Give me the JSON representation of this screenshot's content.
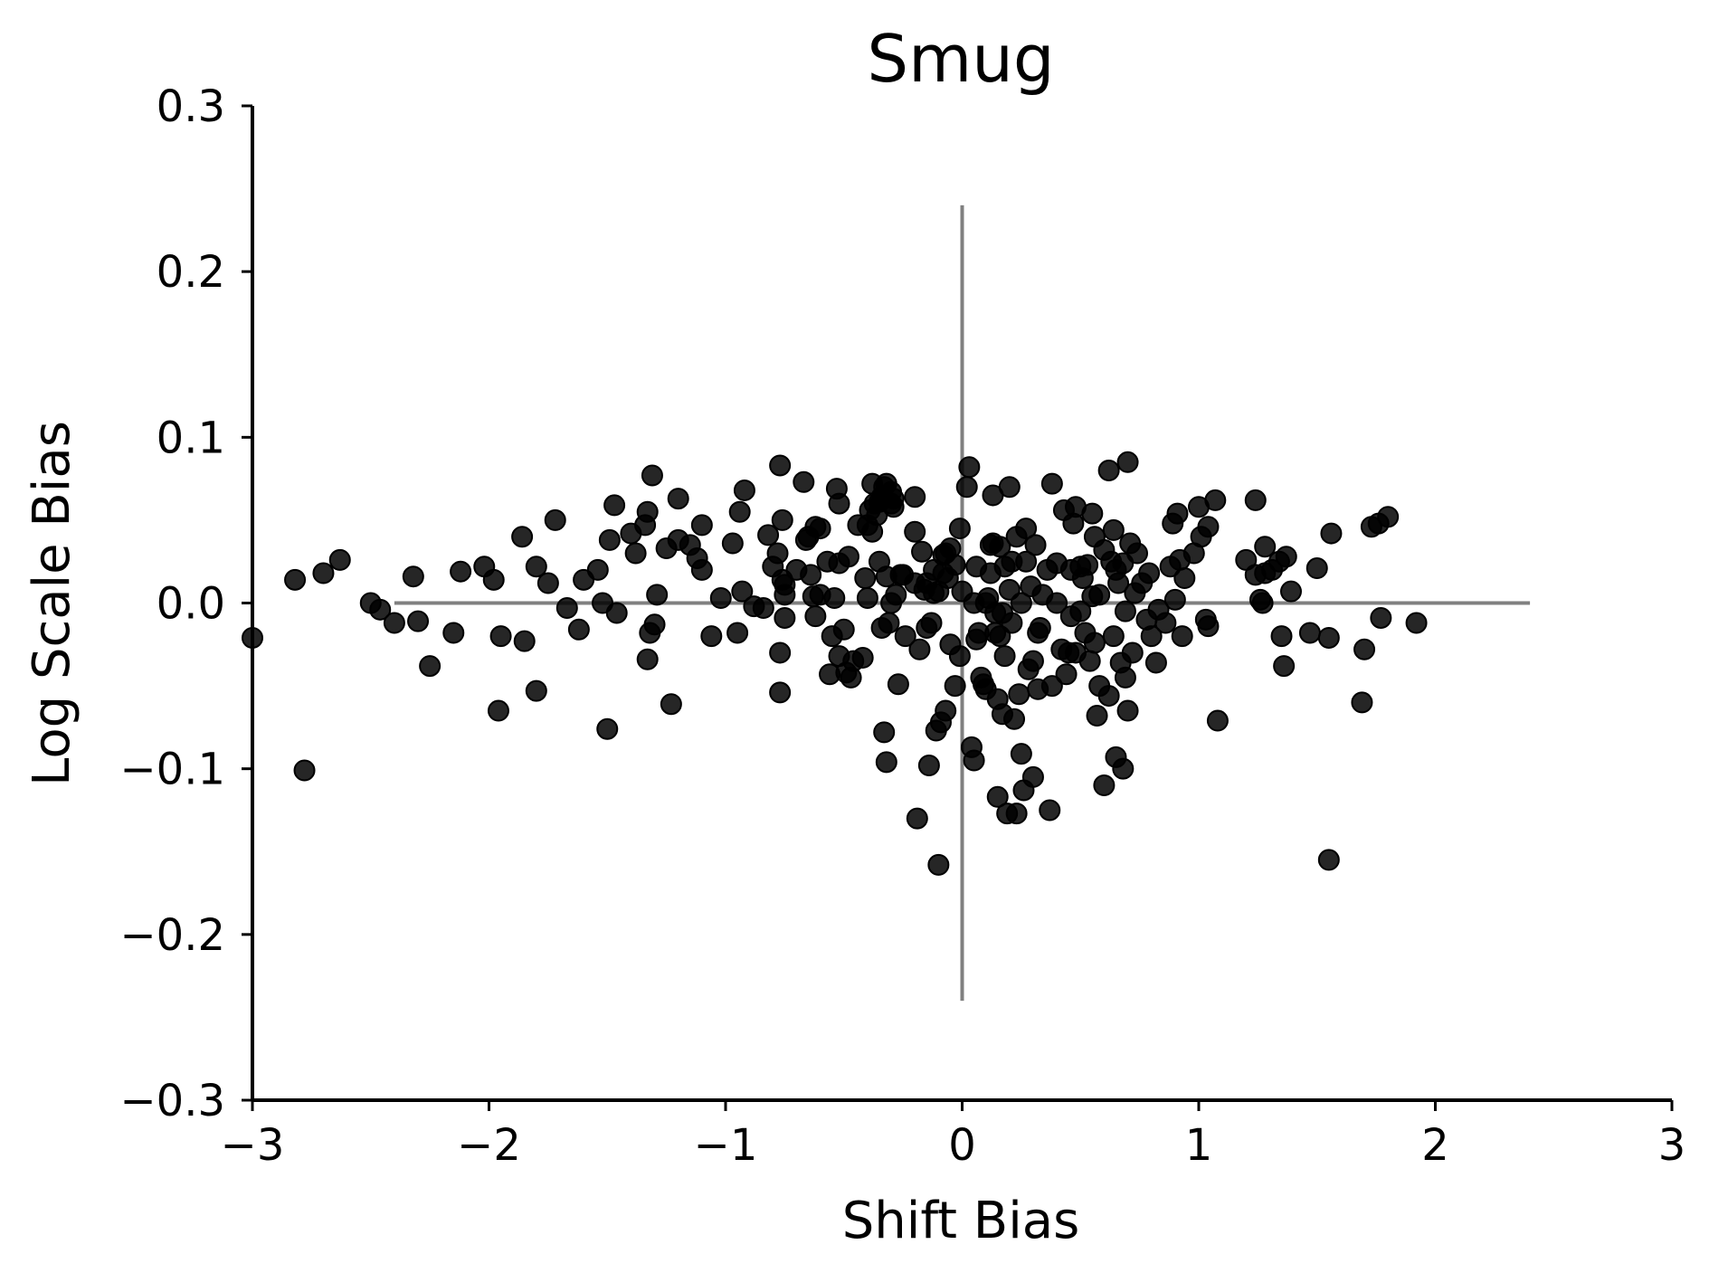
{
  "chart_data": {
    "type": "scatter",
    "title": "Smug",
    "xlabel": "Shift Bias",
    "ylabel": "Log Scale Bias",
    "xlim": [
      -3,
      3
    ],
    "ylim": [
      -0.3,
      0.3
    ],
    "xticks": [
      -3,
      -2,
      -1,
      0,
      1,
      2,
      3
    ],
    "xtick_labels": [
      "−3",
      "−2",
      "−1",
      "0",
      "1",
      "2",
      "3"
    ],
    "yticks": [
      -0.3,
      -0.2,
      -0.1,
      0.0,
      0.1,
      0.2,
      0.3
    ],
    "ytick_labels": [
      "−0.3",
      "−0.2",
      "−0.1",
      "0.0",
      "0.1",
      "0.2",
      "0.3"
    ],
    "grid": false,
    "legend": "none",
    "reference_lines": {
      "horizontal": {
        "y": 0,
        "x_range": [
          -2.4,
          2.4
        ],
        "color": "#808080"
      },
      "vertical": {
        "x": 0,
        "y_range": [
          -0.24,
          0.24
        ],
        "color": "#808080"
      }
    },
    "marker_color": "#000000",
    "points": [
      [
        -3.0,
        -0.021
      ],
      [
        -2.82,
        0.014
      ],
      [
        -2.7,
        0.018
      ],
      [
        -2.63,
        0.026
      ],
      [
        -2.78,
        -0.101
      ],
      [
        -2.5,
        0.0
      ],
      [
        -2.46,
        -0.004
      ],
      [
        -2.4,
        -0.012
      ],
      [
        -2.32,
        0.016
      ],
      [
        -2.3,
        -0.011
      ],
      [
        -2.25,
        -0.038
      ],
      [
        -2.15,
        -0.018
      ],
      [
        -2.12,
        0.019
      ],
      [
        -2.02,
        0.022
      ],
      [
        -1.98,
        0.014
      ],
      [
        -1.96,
        -0.065
      ],
      [
        -1.95,
        -0.02
      ],
      [
        -1.86,
        0.04
      ],
      [
        -1.85,
        -0.023
      ],
      [
        -1.8,
        0.022
      ],
      [
        -1.8,
        -0.053
      ],
      [
        -1.75,
        0.012
      ],
      [
        -1.72,
        0.05
      ],
      [
        -1.67,
        -0.003
      ],
      [
        -1.62,
        -0.016
      ],
      [
        -1.6,
        0.014
      ],
      [
        -1.54,
        0.02
      ],
      [
        -1.52,
        0.0
      ],
      [
        -1.5,
        -0.076
      ],
      [
        -1.49,
        0.038
      ],
      [
        -1.47,
        0.059
      ],
      [
        -1.46,
        -0.006
      ],
      [
        -1.4,
        0.042
      ],
      [
        -1.38,
        0.03
      ],
      [
        -1.34,
        0.047
      ],
      [
        -1.33,
        0.055
      ],
      [
        -1.33,
        -0.034
      ],
      [
        -1.32,
        -0.018
      ],
      [
        -1.31,
        0.077
      ],
      [
        -1.3,
        -0.013
      ],
      [
        -1.29,
        0.005
      ],
      [
        -1.25,
        0.033
      ],
      [
        -1.23,
        -0.061
      ],
      [
        -1.2,
        0.038
      ],
      [
        -1.2,
        0.063
      ],
      [
        -1.15,
        0.035
      ],
      [
        -1.12,
        0.027
      ],
      [
        -1.1,
        0.047
      ],
      [
        -1.1,
        0.02
      ],
      [
        -1.06,
        -0.02
      ],
      [
        -1.02,
        0.003
      ],
      [
        -0.97,
        0.036
      ],
      [
        -0.95,
        -0.018
      ],
      [
        -0.94,
        0.055
      ],
      [
        -0.93,
        0.007
      ],
      [
        -0.92,
        0.068
      ],
      [
        -0.88,
        -0.002
      ],
      [
        -0.84,
        -0.003
      ],
      [
        -0.82,
        0.041
      ],
      [
        -0.8,
        0.022
      ],
      [
        -0.78,
        0.03
      ],
      [
        -0.77,
        0.083
      ],
      [
        -0.77,
        -0.054
      ],
      [
        -0.77,
        -0.03
      ],
      [
        -0.76,
        0.05
      ],
      [
        -0.76,
        0.014
      ],
      [
        -0.75,
        0.011
      ],
      [
        -0.75,
        0.005
      ],
      [
        -0.75,
        -0.009
      ],
      [
        -0.7,
        0.02
      ],
      [
        -0.67,
        0.073
      ],
      [
        -0.66,
        0.038
      ],
      [
        -0.65,
        0.04
      ],
      [
        -0.64,
        0.017
      ],
      [
        -0.63,
        0.004
      ],
      [
        -0.62,
        0.046
      ],
      [
        -0.62,
        -0.008
      ],
      [
        -0.6,
        0.045
      ],
      [
        -0.6,
        0.005
      ],
      [
        -0.57,
        0.025
      ],
      [
        -0.56,
        -0.043
      ],
      [
        -0.55,
        -0.02
      ],
      [
        -0.54,
        0.003
      ],
      [
        -0.53,
        0.069
      ],
      [
        -0.52,
        0.06
      ],
      [
        -0.52,
        0.024
      ],
      [
        -0.52,
        -0.032
      ],
      [
        -0.5,
        -0.016
      ],
      [
        -0.49,
        -0.042
      ],
      [
        -0.48,
        0.028
      ],
      [
        -0.47,
        -0.045
      ],
      [
        -0.46,
        -0.035
      ],
      [
        -0.44,
        0.047
      ],
      [
        -0.42,
        -0.033
      ],
      [
        -0.41,
        0.015
      ],
      [
        -0.4,
        0.003
      ],
      [
        -0.4,
        0.047
      ],
      [
        -0.39,
        0.056
      ],
      [
        -0.38,
        0.043
      ],
      [
        -0.38,
        0.072
      ],
      [
        -0.37,
        0.06
      ],
      [
        -0.36,
        0.053
      ],
      [
        -0.35,
        0.025
      ],
      [
        -0.35,
        0.061
      ],
      [
        -0.34,
        0.064
      ],
      [
        -0.33,
        0.07
      ],
      [
        -0.32,
        0.072
      ],
      [
        -0.34,
        -0.015
      ],
      [
        -0.33,
        -0.078
      ],
      [
        -0.32,
        -0.096
      ],
      [
        -0.32,
        0.016
      ],
      [
        -0.31,
        -0.012
      ],
      [
        -0.3,
        0.0
      ],
      [
        -0.3,
        0.067
      ],
      [
        -0.3,
        0.06
      ],
      [
        -0.29,
        0.058
      ],
      [
        -0.29,
        0.063
      ],
      [
        -0.28,
        0.005
      ],
      [
        -0.27,
        -0.049
      ],
      [
        -0.26,
        0.017
      ],
      [
        -0.25,
        0.017
      ],
      [
        -0.24,
        -0.02
      ],
      [
        -0.2,
        0.064
      ],
      [
        -0.2,
        0.012
      ],
      [
        -0.2,
        0.043
      ],
      [
        -0.19,
        -0.13
      ],
      [
        -0.18,
        -0.028
      ],
      [
        -0.17,
        0.031
      ],
      [
        -0.16,
        0.008
      ],
      [
        -0.15,
        -0.015
      ],
      [
        -0.15,
        0.012
      ],
      [
        -0.14,
        -0.098
      ],
      [
        -0.13,
        -0.012
      ],
      [
        -0.12,
        0.006
      ],
      [
        -0.12,
        0.02
      ],
      [
        -0.11,
        -0.077
      ],
      [
        -0.1,
        -0.158
      ],
      [
        -0.1,
        0.007
      ],
      [
        -0.09,
        -0.072
      ],
      [
        -0.08,
        0.029
      ],
      [
        -0.08,
        0.018
      ],
      [
        -0.07,
        0.03
      ],
      [
        -0.07,
        -0.065
      ],
      [
        -0.06,
        0.015
      ],
      [
        -0.05,
        0.033
      ],
      [
        -0.05,
        -0.025
      ],
      [
        -0.03,
        0.023
      ],
      [
        -0.03,
        -0.05
      ],
      [
        -0.01,
        0.045
      ],
      [
        -0.01,
        -0.032
      ],
      [
        0.0,
        0.007
      ],
      [
        0.02,
        0.07
      ],
      [
        0.03,
        0.082
      ],
      [
        0.04,
        -0.087
      ],
      [
        0.05,
        -0.095
      ],
      [
        0.05,
        0.0
      ],
      [
        0.06,
        0.022
      ],
      [
        0.06,
        -0.022
      ],
      [
        0.07,
        -0.018
      ],
      [
        0.08,
        -0.045
      ],
      [
        0.09,
        -0.049
      ],
      [
        0.1,
        0.0
      ],
      [
        0.1,
        -0.052
      ],
      [
        0.11,
        0.003
      ],
      [
        0.12,
        0.018
      ],
      [
        0.12,
        0.035
      ],
      [
        0.13,
        0.036
      ],
      [
        0.13,
        0.065
      ],
      [
        0.14,
        -0.006
      ],
      [
        0.14,
        -0.018
      ],
      [
        0.15,
        -0.058
      ],
      [
        0.15,
        -0.117
      ],
      [
        0.16,
        -0.02
      ],
      [
        0.16,
        0.034
      ],
      [
        0.17,
        -0.067
      ],
      [
        0.17,
        -0.006
      ],
      [
        0.18,
        0.022
      ],
      [
        0.18,
        -0.032
      ],
      [
        0.19,
        -0.127
      ],
      [
        0.2,
        0.07
      ],
      [
        0.2,
        0.008
      ],
      [
        0.21,
        0.025
      ],
      [
        0.21,
        -0.012
      ],
      [
        0.22,
        -0.07
      ],
      [
        0.23,
        0.04
      ],
      [
        0.23,
        -0.127
      ],
      [
        0.24,
        -0.055
      ],
      [
        0.25,
        -0.091
      ],
      [
        0.25,
        0.0
      ],
      [
        0.26,
        -0.113
      ],
      [
        0.27,
        0.045
      ],
      [
        0.27,
        0.025
      ],
      [
        0.28,
        -0.04
      ],
      [
        0.29,
        0.01
      ],
      [
        0.3,
        -0.105
      ],
      [
        0.3,
        -0.035
      ],
      [
        0.31,
        0.035
      ],
      [
        0.32,
        -0.018
      ],
      [
        0.32,
        -0.052
      ],
      [
        0.33,
        -0.015
      ],
      [
        0.34,
        0.005
      ],
      [
        0.36,
        0.02
      ],
      [
        0.37,
        -0.125
      ],
      [
        0.38,
        0.072
      ],
      [
        0.38,
        -0.05
      ],
      [
        0.4,
        0.0
      ],
      [
        0.4,
        0.024
      ],
      [
        0.42,
        -0.028
      ],
      [
        0.43,
        0.056
      ],
      [
        0.44,
        -0.043
      ],
      [
        0.45,
        -0.03
      ],
      [
        0.46,
        -0.008
      ],
      [
        0.46,
        0.02
      ],
      [
        0.47,
        0.048
      ],
      [
        0.48,
        0.058
      ],
      [
        0.48,
        -0.03
      ],
      [
        0.5,
        0.022
      ],
      [
        0.5,
        -0.005
      ],
      [
        0.51,
        0.015
      ],
      [
        0.52,
        -0.018
      ],
      [
        0.53,
        0.023
      ],
      [
        0.54,
        -0.035
      ],
      [
        0.55,
        0.054
      ],
      [
        0.55,
        0.004
      ],
      [
        0.56,
        -0.024
      ],
      [
        0.56,
        0.04
      ],
      [
        0.57,
        -0.068
      ],
      [
        0.58,
        0.005
      ],
      [
        0.58,
        -0.05
      ],
      [
        0.6,
        0.032
      ],
      [
        0.6,
        -0.11
      ],
      [
        0.62,
        0.08
      ],
      [
        0.62,
        -0.056
      ],
      [
        0.63,
        0.025
      ],
      [
        0.64,
        0.044
      ],
      [
        0.64,
        -0.02
      ],
      [
        0.65,
        0.02
      ],
      [
        0.65,
        -0.093
      ],
      [
        0.66,
        0.012
      ],
      [
        0.67,
        -0.036
      ],
      [
        0.68,
        -0.1
      ],
      [
        0.68,
        0.024
      ],
      [
        0.69,
        -0.005
      ],
      [
        0.69,
        -0.045
      ],
      [
        0.7,
        -0.065
      ],
      [
        0.7,
        0.085
      ],
      [
        0.71,
        0.036
      ],
      [
        0.72,
        -0.03
      ],
      [
        0.73,
        0.006
      ],
      [
        0.74,
        0.03
      ],
      [
        0.76,
        0.012
      ],
      [
        0.78,
        -0.01
      ],
      [
        0.79,
        0.018
      ],
      [
        0.8,
        -0.02
      ],
      [
        0.82,
        -0.036
      ],
      [
        0.83,
        -0.004
      ],
      [
        0.86,
        -0.012
      ],
      [
        0.88,
        0.022
      ],
      [
        0.89,
        0.048
      ],
      [
        0.9,
        0.002
      ],
      [
        0.91,
        0.054
      ],
      [
        0.92,
        0.026
      ],
      [
        0.93,
        -0.02
      ],
      [
        0.94,
        0.015
      ],
      [
        0.98,
        0.03
      ],
      [
        1.0,
        0.058
      ],
      [
        1.01,
        0.04
      ],
      [
        1.03,
        -0.01
      ],
      [
        1.04,
        -0.014
      ],
      [
        1.04,
        0.046
      ],
      [
        1.07,
        0.062
      ],
      [
        1.08,
        -0.071
      ],
      [
        1.2,
        0.026
      ],
      [
        1.24,
        0.062
      ],
      [
        1.24,
        0.017
      ],
      [
        1.26,
        0.002
      ],
      [
        1.27,
        0.0
      ],
      [
        1.28,
        0.034
      ],
      [
        1.28,
        0.018
      ],
      [
        1.31,
        0.02
      ],
      [
        1.34,
        0.025
      ],
      [
        1.35,
        -0.02
      ],
      [
        1.36,
        -0.038
      ],
      [
        1.37,
        0.028
      ],
      [
        1.39,
        0.007
      ],
      [
        1.47,
        -0.018
      ],
      [
        1.5,
        0.021
      ],
      [
        1.55,
        -0.155
      ],
      [
        1.55,
        -0.021
      ],
      [
        1.56,
        0.042
      ],
      [
        1.69,
        -0.06
      ],
      [
        1.7,
        -0.028
      ],
      [
        1.73,
        0.046
      ],
      [
        1.76,
        0.048
      ],
      [
        1.77,
        -0.009
      ],
      [
        1.8,
        0.052
      ],
      [
        1.92,
        -0.012
      ]
    ]
  }
}
